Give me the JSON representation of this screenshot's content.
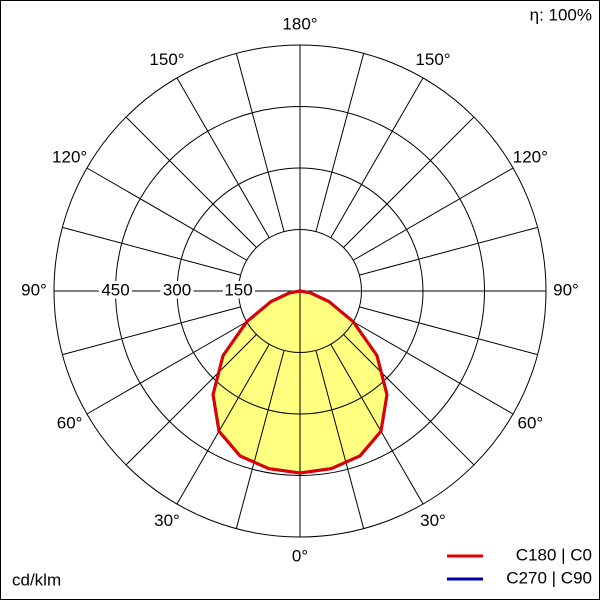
{
  "chart_data": {
    "type": "polar",
    "efficiency_label": "η: 100%",
    "unit_label": "cd/klm",
    "angles": [
      -90,
      -80,
      -70,
      -60,
      -50,
      -40,
      -30,
      -20,
      -10,
      0,
      10,
      20,
      30,
      40,
      50,
      60,
      70,
      80,
      90
    ],
    "series": [
      {
        "name": "C270 | C90",
        "color": "#0000a0",
        "values": [
          0,
          25,
          75,
          150,
          245,
          330,
          395,
          428,
          440,
          444,
          440,
          428,
          395,
          330,
          245,
          150,
          75,
          25,
          0
        ]
      },
      {
        "name": "C180 | C0",
        "color": "#e00000",
        "values": [
          0,
          25,
          75,
          150,
          245,
          330,
          395,
          428,
          440,
          444,
          440,
          428,
          395,
          330,
          245,
          150,
          75,
          25,
          0
        ]
      }
    ],
    "fill_color": "#ffff80",
    "rlim": [
      0,
      600
    ],
    "rticks": [
      150,
      300,
      450
    ],
    "angle_ticks": [
      {
        "value": 0,
        "label": "0°"
      },
      {
        "value": 30,
        "label": "30°"
      },
      {
        "value": 60,
        "label": "60°"
      },
      {
        "value": 90,
        "label": "90°"
      },
      {
        "value": 120,
        "label": "120°"
      },
      {
        "value": 150,
        "label": "150°"
      },
      {
        "value": 180,
        "label": "180°"
      }
    ]
  }
}
